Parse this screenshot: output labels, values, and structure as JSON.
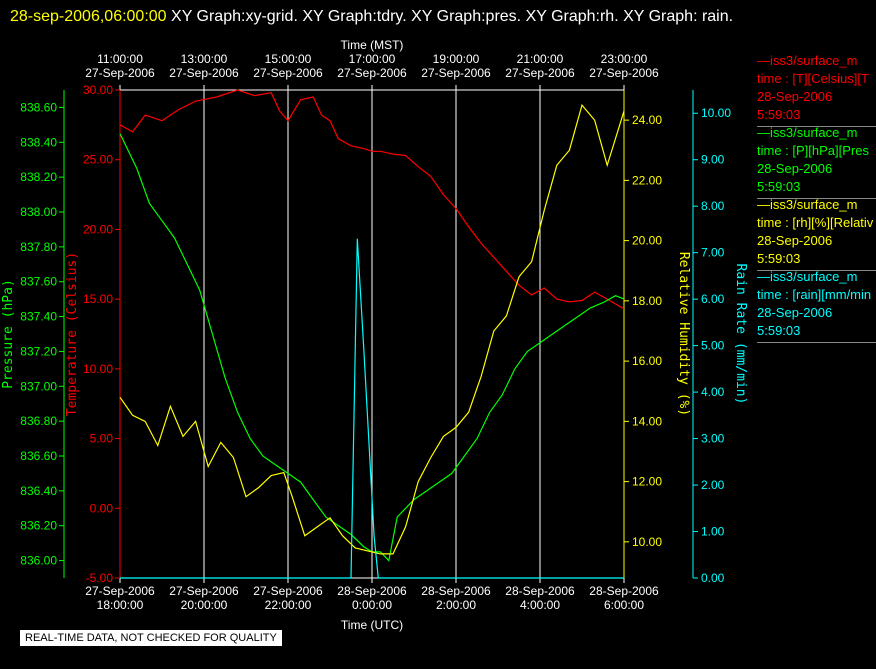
{
  "header": {
    "timestamp": "28-sep-2006,06:00:00",
    "title": "XY Graph:xy-grid.  XY Graph:tdry.  XY Graph:pres.  XY Graph:rh.  XY Graph: rain."
  },
  "note": "REAL-TIME DATA, NOT CHECKED FOR QUALITY",
  "colors": {
    "temp": "#ff0000",
    "pres": "#00ff00",
    "rh": "#ffff00",
    "rain": "#00ffff",
    "grid": "#ffffff"
  },
  "legend": [
    {
      "name": "—iss3/surface_m",
      "units": "time : [T][Celsius][T",
      "date": "28-Sep-2006",
      "time": "5:59:03",
      "color": "#ff0000"
    },
    {
      "name": "—iss3/surface_m",
      "units": "time : [P][hPa][Pres",
      "date": "28-Sep-2006",
      "time": "5:59:03",
      "color": "#00ff00"
    },
    {
      "name": "—iss3/surface_m",
      "units": "time : [rh][%][Relativ",
      "date": "28-Sep-2006",
      "time": "5:59:03",
      "color": "#ffff00"
    },
    {
      "name": "—iss3/surface_m",
      "units": "time : [rain][mm/min",
      "date": "28-Sep-2006",
      "time": "5:59:03",
      "color": "#00ffff"
    }
  ],
  "chart_data": {
    "type": "line",
    "top_axis": {
      "label": "Time (MST)",
      "ticks": [
        {
          "time": "11:00:00",
          "date": "27-Sep-2006"
        },
        {
          "time": "13:00:00",
          "date": "27-Sep-2006"
        },
        {
          "time": "15:00:00",
          "date": "27-Sep-2006"
        },
        {
          "time": "17:00:00",
          "date": "27-Sep-2006"
        },
        {
          "time": "19:00:00",
          "date": "27-Sep-2006"
        },
        {
          "time": "21:00:00",
          "date": "27-Sep-2006"
        },
        {
          "time": "23:00:00",
          "date": "27-Sep-2006"
        }
      ]
    },
    "bottom_axis": {
      "label": "Time (UTC)",
      "ticks": [
        {
          "date": "27-Sep-2006",
          "time": "18:00:00"
        },
        {
          "date": "27-Sep-2006",
          "time": "20:00:00"
        },
        {
          "date": "27-Sep-2006",
          "time": "22:00:00"
        },
        {
          "date": "28-Sep-2006",
          "time": "0:00:00"
        },
        {
          "date": "28-Sep-2006",
          "time": "2:00:00"
        },
        {
          "date": "28-Sep-2006",
          "time": "4:00:00"
        },
        {
          "date": "28-Sep-2006",
          "time": "6:00:00"
        }
      ]
    },
    "axes": {
      "pressure": {
        "label": "Pressure (hPa)",
        "min": 835.9,
        "max": 838.7,
        "ticks": [
          "836.00",
          "836.20",
          "836.40",
          "836.60",
          "836.80",
          "837.00",
          "837.20",
          "837.40",
          "837.60",
          "837.80",
          "838.00",
          "838.20",
          "838.40",
          "838.60"
        ]
      },
      "temperature": {
        "label": "Temperature (Celsius)",
        "min": -5,
        "max": 30,
        "ticks": [
          "-5.00",
          "0.00",
          "5.00",
          "10.00",
          "15.00",
          "20.00",
          "25.00",
          "30.00"
        ]
      },
      "humidity": {
        "label": "Relative Humidity (%)",
        "min": 8.8,
        "max": 25.0,
        "ticks": [
          "10.00",
          "12.00",
          "14.00",
          "16.00",
          "18.00",
          "20.00",
          "22.00",
          "24.00"
        ]
      },
      "rain": {
        "label": "Rain Rate (mm/min)",
        "min": 0,
        "max": 10.5,
        "ticks": [
          "0.00",
          "1.00",
          "2.00",
          "3.00",
          "4.00",
          "5.00",
          "6.00",
          "7.00",
          "8.00",
          "9.00",
          "10.00"
        ]
      }
    },
    "x_range_hours_utc": [
      18,
      30
    ],
    "series": [
      {
        "name": "Temperature",
        "axis": "temperature",
        "x": [
          18.0,
          18.3,
          18.6,
          19.0,
          19.4,
          19.8,
          20.3,
          20.8,
          21.2,
          21.6,
          21.8,
          22.0,
          22.3,
          22.6,
          22.8,
          23.0,
          23.2,
          23.5,
          23.8,
          24.0,
          24.2,
          24.5,
          24.8,
          25.1,
          25.4,
          25.7,
          26.0,
          26.3,
          26.6,
          26.9,
          27.2,
          27.5,
          27.8,
          28.1,
          28.4,
          28.7,
          29.0,
          29.3,
          29.6,
          30.0
        ],
        "y": [
          27.5,
          27.0,
          28.2,
          27.8,
          28.6,
          29.2,
          29.5,
          30.0,
          29.6,
          29.8,
          28.5,
          27.8,
          29.3,
          29.5,
          28.2,
          27.8,
          26.5,
          26.0,
          25.8,
          25.6,
          25.6,
          25.4,
          25.3,
          24.5,
          23.8,
          22.5,
          21.5,
          20.2,
          19.0,
          18.0,
          17.0,
          16.0,
          15.3,
          15.8,
          15.0,
          14.8,
          14.9,
          15.5,
          15.0,
          14.3
        ]
      },
      {
        "name": "Pressure",
        "axis": "pressure",
        "x": [
          18.0,
          18.2,
          18.4,
          18.7,
          19.0,
          19.3,
          19.6,
          19.9,
          20.2,
          20.5,
          20.8,
          21.1,
          21.4,
          21.7,
          22.0,
          22.3,
          22.6,
          22.9,
          23.2,
          23.5,
          23.8,
          24.0,
          24.2,
          24.4,
          24.6,
          24.8,
          25.0,
          25.3,
          25.6,
          25.9,
          26.2,
          26.5,
          26.8,
          27.1,
          27.4,
          27.7,
          28.0,
          28.3,
          28.6,
          28.9,
          29.2,
          29.5,
          29.8,
          30.0
        ],
        "y": [
          838.45,
          838.35,
          838.25,
          838.05,
          837.95,
          837.85,
          837.7,
          837.55,
          837.3,
          837.05,
          836.85,
          836.7,
          836.6,
          836.55,
          836.5,
          836.45,
          836.35,
          836.25,
          836.2,
          836.15,
          836.08,
          836.05,
          836.05,
          836.0,
          836.25,
          836.3,
          836.35,
          836.4,
          836.45,
          836.5,
          836.6,
          836.7,
          836.85,
          836.95,
          837.1,
          837.2,
          837.25,
          837.3,
          837.35,
          837.4,
          837.45,
          837.48,
          837.52,
          837.5
        ]
      },
      {
        "name": "Relative Humidity",
        "axis": "humidity",
        "x": [
          18.0,
          18.3,
          18.6,
          18.9,
          19.2,
          19.5,
          19.8,
          20.1,
          20.4,
          20.7,
          21.0,
          21.3,
          21.6,
          21.9,
          22.1,
          22.4,
          22.7,
          23.0,
          23.3,
          23.6,
          23.9,
          24.2,
          24.5,
          24.8,
          25.1,
          25.4,
          25.7,
          26.0,
          26.3,
          26.6,
          26.9,
          27.2,
          27.5,
          27.8,
          28.1,
          28.4,
          28.7,
          29.0,
          29.3,
          29.6,
          30.0
        ],
        "y": [
          14.8,
          14.2,
          14.0,
          13.2,
          14.5,
          13.5,
          14.0,
          12.5,
          13.3,
          12.8,
          11.5,
          11.8,
          12.2,
          12.3,
          11.5,
          10.2,
          10.5,
          10.8,
          10.2,
          9.8,
          9.7,
          9.6,
          9.6,
          10.5,
          12.0,
          12.8,
          13.5,
          13.8,
          14.3,
          15.5,
          17.0,
          17.5,
          18.8,
          19.3,
          21.0,
          22.5,
          23.0,
          24.5,
          24.0,
          22.5,
          24.3
        ]
      },
      {
        "name": "Rain Rate",
        "axis": "rain",
        "x": [
          18.0,
          23.5,
          23.65,
          23.8,
          24.05,
          24.15,
          30.0
        ],
        "y": [
          0.0,
          0.0,
          7.3,
          5.0,
          0.9,
          0.0,
          0.0
        ]
      }
    ]
  }
}
